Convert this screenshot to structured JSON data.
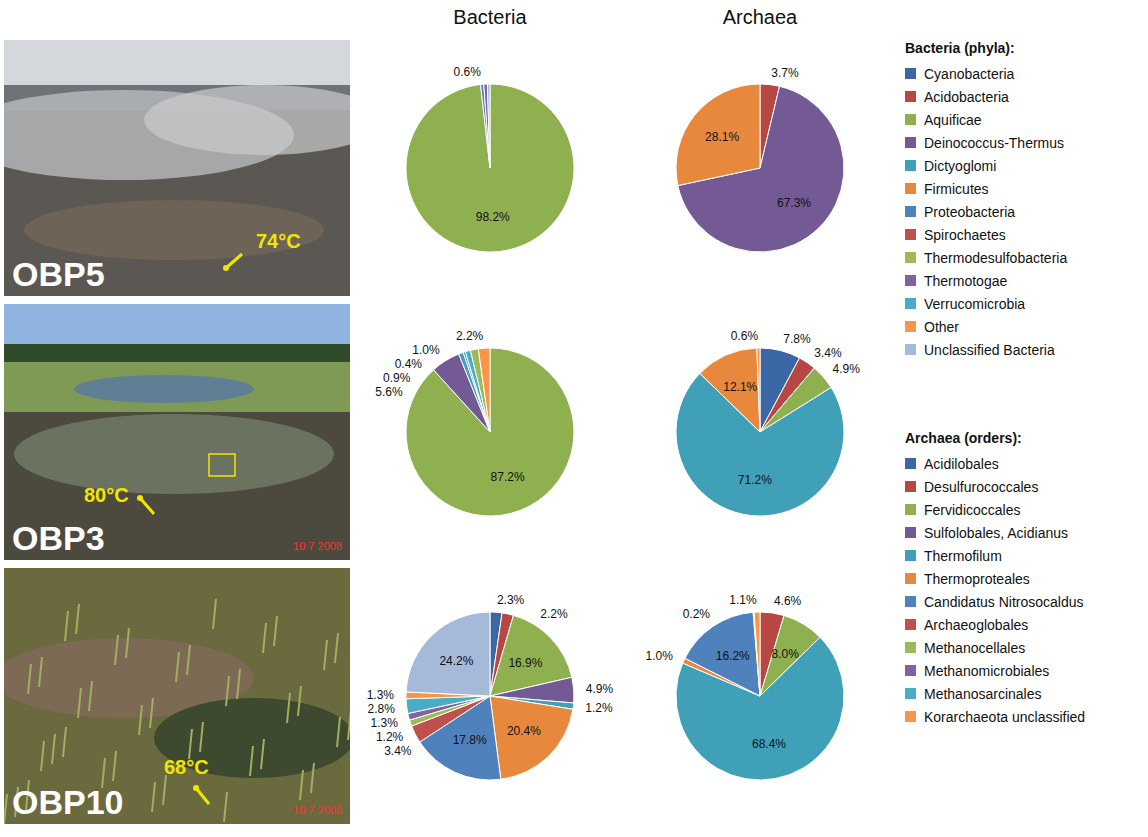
{
  "column_titles": [
    "Bacteria",
    "Archaea"
  ],
  "sites": [
    {
      "name": "OBP5",
      "temperature": "74°C",
      "date_stamp": null
    },
    {
      "name": "OBP3",
      "temperature": "80°C",
      "date_stamp": "10 7 2008"
    },
    {
      "name": "OBP10",
      "temperature": "68°C",
      "date_stamp": "10 7 2008"
    }
  ],
  "legends": [
    {
      "title": "Bacteria (phyla):",
      "items": [
        {
          "name": "Cyanobacteria",
          "color": "#3c67a5"
        },
        {
          "name": "Acidobacteria",
          "color": "#b84744"
        },
        {
          "name": "Aquificae",
          "color": "#8fb04e"
        },
        {
          "name": "Deinococcus-Thermus",
          "color": "#735a94"
        },
        {
          "name": "Dictyoglomi",
          "color": "#40a0b8"
        },
        {
          "name": "Firmicutes",
          "color": "#e8883d"
        },
        {
          "name": "Proteobacteria",
          "color": "#4f81bd"
        },
        {
          "name": "Spirochaetes",
          "color": "#c0504d"
        },
        {
          "name": "Thermodesulfobacteria",
          "color": "#9bbb59"
        },
        {
          "name": "Thermotogae",
          "color": "#8064a2"
        },
        {
          "name": "Verrucomicrobia",
          "color": "#4bacc6"
        },
        {
          "name": "Other",
          "color": "#f79646"
        },
        {
          "name": "Unclassified Bacteria",
          "color": "#a5b9d9"
        }
      ]
    },
    {
      "title": "Archaea (orders):",
      "items": [
        {
          "name": "Acidilobales",
          "color": "#3c67a5"
        },
        {
          "name": "Desulfurococcales",
          "color": "#b84744"
        },
        {
          "name": "Fervidicoccales",
          "color": "#8fb04e"
        },
        {
          "name": "Sulfolobales, Acidianus",
          "color": "#735a94"
        },
        {
          "name": "Thermofilum",
          "color": "#40a0b8"
        },
        {
          "name": "Thermoproteales",
          "color": "#e8883d"
        },
        {
          "name": "Candidatus Nitrosocaldus",
          "color": "#4f81bd"
        },
        {
          "name": "Archaeoglobales",
          "color": "#c0504d"
        },
        {
          "name": "Methanocellales",
          "color": "#9bbb59"
        },
        {
          "name": "Methanomicrobiales",
          "color": "#8064a2"
        },
        {
          "name": "Methanosarcinales",
          "color": "#4bacc6"
        },
        {
          "name": "Korarchaeota unclassified",
          "color": "#f79646"
        }
      ]
    }
  ],
  "chart_data": [
    {
      "type": "pie",
      "data_labels": true,
      "categories": [
        "Aquificae",
        "Proteobacteria",
        "Thermotogae",
        "Unclassified Bacteria"
      ],
      "values": [
        98.2,
        0.6,
        0.7,
        0.5
      ],
      "value_labels": [
        "98.2%",
        "0.6%",
        null,
        null
      ],
      "colors": [
        "#8fb04e",
        "#4f81bd",
        "#8064a2",
        "#a5b9d9"
      ]
    },
    {
      "type": "pie",
      "data_labels": true,
      "categories": [
        "Desulfurococcales",
        "Sulfolobales, Acidianus",
        "Thermoproteales"
      ],
      "values": [
        3.7,
        67.3,
        28.1
      ],
      "value_labels": [
        "3.7%",
        "67.3%",
        "28.1%"
      ],
      "colors": [
        "#b84744",
        "#735a94",
        "#e8883d"
      ]
    },
    {
      "type": "pie",
      "data_labels": true,
      "categories": [
        "Aquificae",
        "Deinococcus-Thermus",
        "Dictyoglomi",
        "Proteobacteria",
        "Verrucomicrobia",
        "Thermodesulfobacteria",
        "Other"
      ],
      "values": [
        87.2,
        5.6,
        0.9,
        0.4,
        1.0,
        1.5,
        2.2
      ],
      "value_labels": [
        "87.2%",
        "5.6%",
        "0.9%",
        "0.4%",
        "1.0%",
        null,
        "2.2%"
      ],
      "colors": [
        "#8fb04e",
        "#735a94",
        "#40a0b8",
        "#4f81bd",
        "#4bacc6",
        "#9bbb59",
        "#f79646"
      ]
    },
    {
      "type": "pie",
      "data_labels": true,
      "categories": [
        "Acidilobales",
        "Desulfurococcales",
        "Fervidicoccales",
        "Thermofilum",
        "Thermoproteales",
        "Korarchaeota unclassified"
      ],
      "values": [
        7.8,
        3.4,
        4.9,
        71.2,
        12.1,
        0.6
      ],
      "value_labels": [
        "7.8%",
        "3.4%",
        "4.9%",
        "71.2%",
        "12.1%",
        "0.6%"
      ],
      "colors": [
        "#3c67a5",
        "#b84744",
        "#8fb04e",
        "#40a0b8",
        "#e8883d",
        "#f79646"
      ]
    },
    {
      "type": "pie",
      "data_labels": true,
      "categories": [
        "Cyanobacteria",
        "Acidobacteria",
        "Aquificae",
        "Deinococcus-Thermus",
        "Dictyoglomi",
        "Firmicutes",
        "Proteobacteria",
        "Spirochaetes",
        "Thermodesulfobacteria",
        "Thermotogae",
        "Verrucomicrobia",
        "Other",
        "Unclassified Bacteria"
      ],
      "values": [
        2.3,
        2.2,
        16.9,
        4.9,
        1.2,
        20.4,
        17.8,
        3.4,
        1.2,
        1.3,
        2.8,
        1.3,
        24.2
      ],
      "value_labels": [
        "2.3%",
        "2.2%",
        "16.9%",
        "4.9%",
        "1.2%",
        "20.4%",
        "17.8%",
        "3.4%",
        "1.2%",
        "1.3%",
        "2.8%",
        "1.3%",
        "24.2%"
      ],
      "colors": [
        "#3c67a5",
        "#b84744",
        "#8fb04e",
        "#735a94",
        "#40a0b8",
        "#e8883d",
        "#4f81bd",
        "#c0504d",
        "#9bbb59",
        "#8064a2",
        "#4bacc6",
        "#f79646",
        "#a5b9d9"
      ]
    },
    {
      "type": "pie",
      "data_labels": true,
      "categories": [
        "Desulfurococcales",
        "Fervidicoccales",
        "Thermofilum",
        "Thermoproteales",
        "Candidatus Nitrosocaldus",
        "Methanomicrobiales",
        "Korarchaeota unclassified"
      ],
      "values": [
        4.6,
        8.0,
        68.4,
        1.0,
        16.2,
        0.2,
        1.1
      ],
      "value_labels": [
        "4.6%",
        "8.0%",
        "68.4%",
        "1.0%",
        "16.2%",
        "0.2%",
        "1.1%"
      ],
      "colors": [
        "#b84744",
        "#8fb04e",
        "#40a0b8",
        "#e8883d",
        "#4f81bd",
        "#8064a2",
        "#f79646"
      ]
    }
  ]
}
